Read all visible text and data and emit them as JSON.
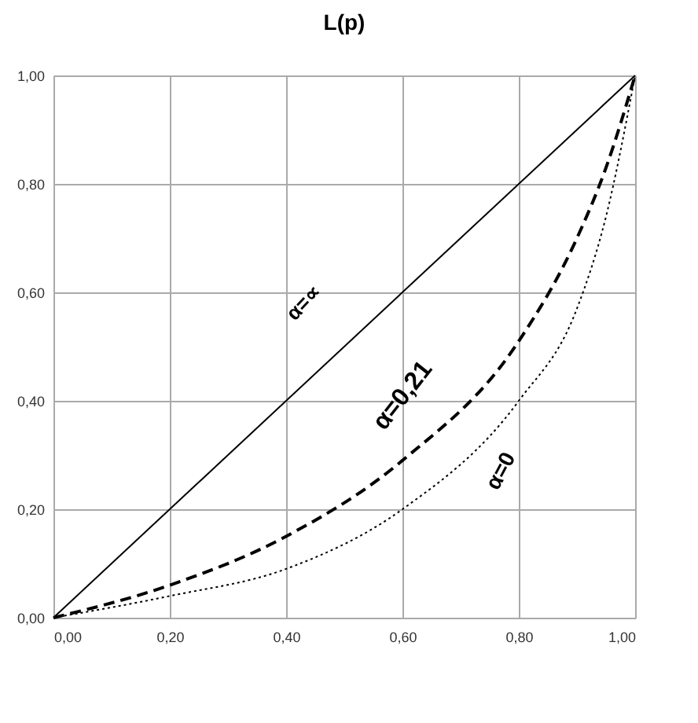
{
  "chart_data": {
    "type": "line",
    "title": "L(p)",
    "xlim": [
      0,
      1
    ],
    "ylim": [
      0,
      1
    ],
    "xticks": [
      {
        "value": 0,
        "label": "0,00"
      },
      {
        "value": 0.2,
        "label": "0,20"
      },
      {
        "value": 0.4,
        "label": "0,40"
      },
      {
        "value": 0.6,
        "label": "0,60"
      },
      {
        "value": 0.8,
        "label": "0,80"
      },
      {
        "value": 1,
        "label": "1,00"
      }
    ],
    "yticks": [
      {
        "value": 0,
        "label": "0,00"
      },
      {
        "value": 0.2,
        "label": "0,20"
      },
      {
        "value": 0.4,
        "label": "0,40"
      },
      {
        "value": 0.6,
        "label": "0,60"
      },
      {
        "value": 0.8,
        "label": "0,80"
      },
      {
        "value": 1,
        "label": "1,00"
      }
    ],
    "grid": true,
    "marker": "none",
    "series": [
      {
        "color": "#000000",
        "line_style": "solid",
        "x": [
          0,
          1
        ],
        "values": [
          0,
          1
        ]
      },
      {
        "color": "#000000",
        "line_style": "dashed",
        "x": [
          0,
          0.2,
          0.4,
          0.6,
          0.8,
          0.9,
          0.95,
          1
        ],
        "values": [
          0,
          0.06,
          0.15,
          0.29,
          0.51,
          0.7,
          0.83,
          1
        ]
      },
      {
        "color": "#000000",
        "line_style": "dotted",
        "x": [
          0,
          0.2,
          0.4,
          0.6,
          0.8,
          0.9,
          0.95,
          1
        ],
        "values": [
          0,
          0.04,
          0.09,
          0.2,
          0.4,
          0.57,
          0.74,
          1
        ]
      }
    ],
    "annotations": [
      "α=∝",
      "α=0,21",
      "α=0"
    ]
  }
}
